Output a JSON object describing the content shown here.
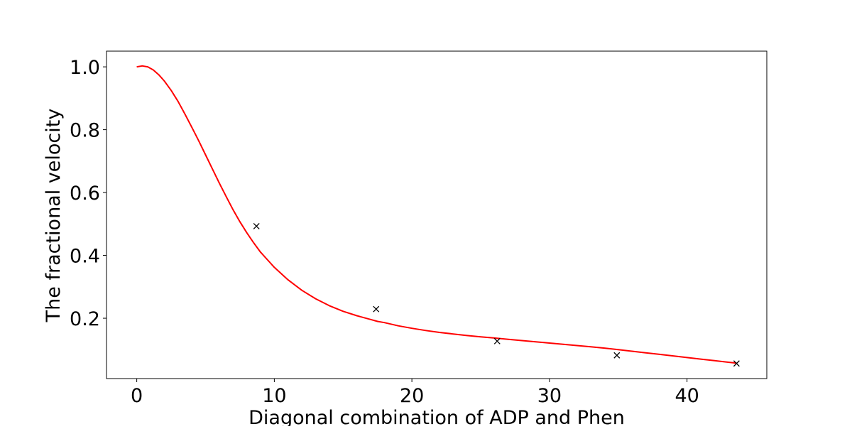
{
  "chart_data": {
    "type": "line",
    "title": "",
    "xlabel": "Diagonal combination of ADP and Phen",
    "ylabel": "The fractional velocity",
    "xlim": [
      -2.2,
      45.8
    ],
    "ylim": [
      0.008,
      1.05
    ],
    "x_ticks": [
      {
        "value": 0,
        "label": "0"
      },
      {
        "value": 10,
        "label": "10"
      },
      {
        "value": 20,
        "label": "20"
      },
      {
        "value": 30,
        "label": "30"
      },
      {
        "value": 40,
        "label": "40"
      }
    ],
    "y_ticks": [
      {
        "value": 0.2,
        "label": "0.2"
      },
      {
        "value": 0.4,
        "label": "0.4"
      },
      {
        "value": 0.6,
        "label": "0.6"
      },
      {
        "value": 0.8,
        "label": "0.8"
      },
      {
        "value": 1.0,
        "label": "1.0"
      }
    ],
    "grid": false,
    "legend": "none",
    "series": [
      {
        "kind": "line",
        "color": "#ff0000",
        "x": [
          0,
          0.4,
          0.8,
          1.2,
          1.6,
          2.0,
          2.5,
          3.0,
          3.5,
          4.0,
          4.5,
          5.0,
          5.5,
          6.0,
          6.5,
          7.0,
          7.5,
          8.0,
          8.5,
          9.0,
          10,
          11,
          12,
          13,
          14,
          15,
          16,
          17,
          17.5,
          18,
          19,
          20,
          21,
          22,
          23,
          24,
          25,
          26,
          27,
          28,
          29,
          30,
          31,
          32,
          33,
          34,
          35,
          36,
          37,
          38,
          39,
          40,
          41,
          42,
          43,
          43.6
        ],
        "y": [
          1.0,
          1.003,
          1.0,
          0.99,
          0.975,
          0.955,
          0.925,
          0.89,
          0.85,
          0.808,
          0.765,
          0.72,
          0.675,
          0.63,
          0.587,
          0.545,
          0.507,
          0.472,
          0.44,
          0.41,
          0.362,
          0.322,
          0.289,
          0.262,
          0.24,
          0.222,
          0.208,
          0.196,
          0.19,
          0.186,
          0.176,
          0.168,
          0.161,
          0.155,
          0.15,
          0.145,
          0.141,
          0.137,
          0.133,
          0.129,
          0.125,
          0.121,
          0.117,
          0.113,
          0.109,
          0.105,
          0.1,
          0.095,
          0.09,
          0.085,
          0.08,
          0.075,
          0.07,
          0.065,
          0.06,
          0.057
        ]
      },
      {
        "kind": "scatter",
        "marker": "x",
        "color": "#000000",
        "x": [
          8.7,
          17.4,
          26.2,
          34.9,
          43.6
        ],
        "y": [
          0.493,
          0.229,
          0.127,
          0.082,
          0.056
        ]
      }
    ]
  }
}
